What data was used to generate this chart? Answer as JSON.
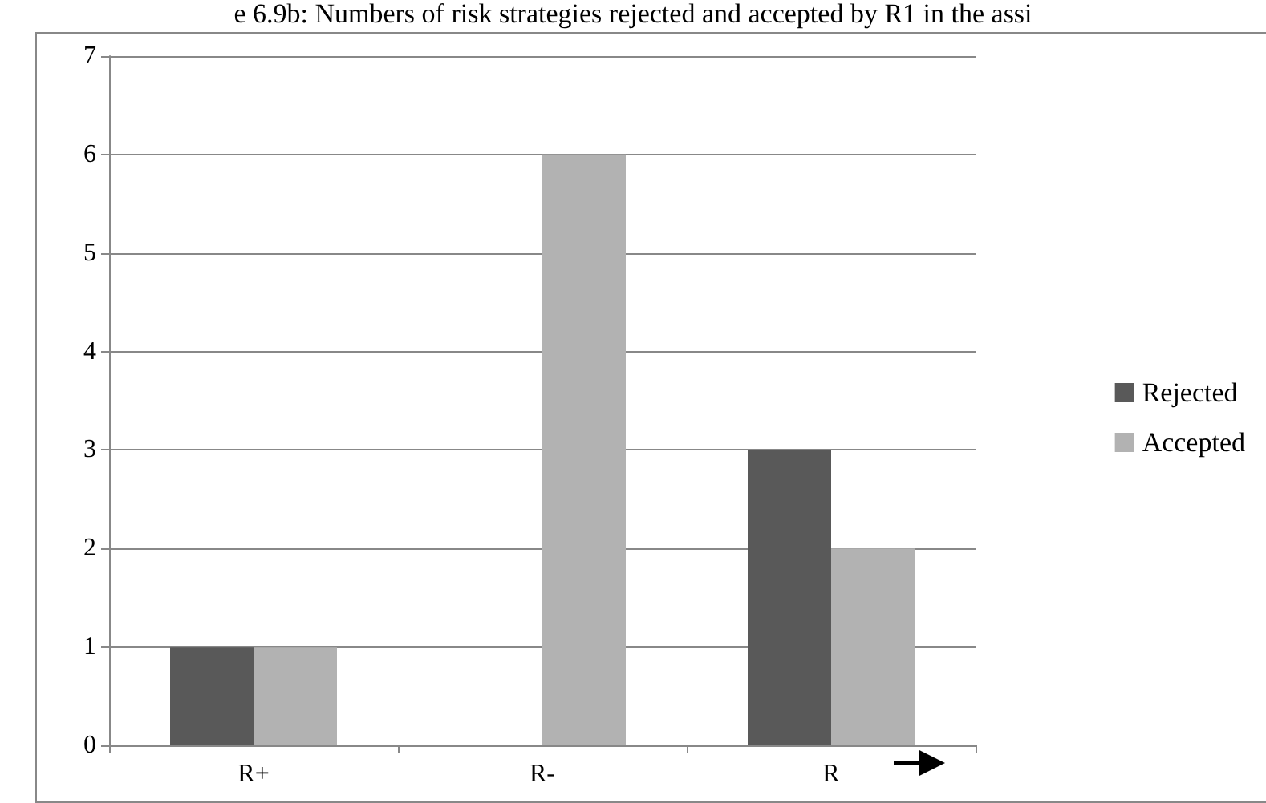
{
  "chart_data": {
    "type": "bar",
    "title": "e 6.9b: Numbers of risk strategies rejected and accepted by R1 in the assi",
    "categories": [
      "R+",
      "R-",
      "R"
    ],
    "series": [
      {
        "name": "Rejected",
        "color": "#595959",
        "values": [
          1,
          0,
          3
        ]
      },
      {
        "name": "Accepted",
        "color": "#b2b2b2",
        "values": [
          1,
          6,
          2
        ]
      }
    ],
    "ylim": [
      0,
      7
    ],
    "yticks": [
      0,
      1,
      2,
      3,
      4,
      5,
      6,
      7
    ],
    "grid": "y",
    "legend": "right"
  }
}
